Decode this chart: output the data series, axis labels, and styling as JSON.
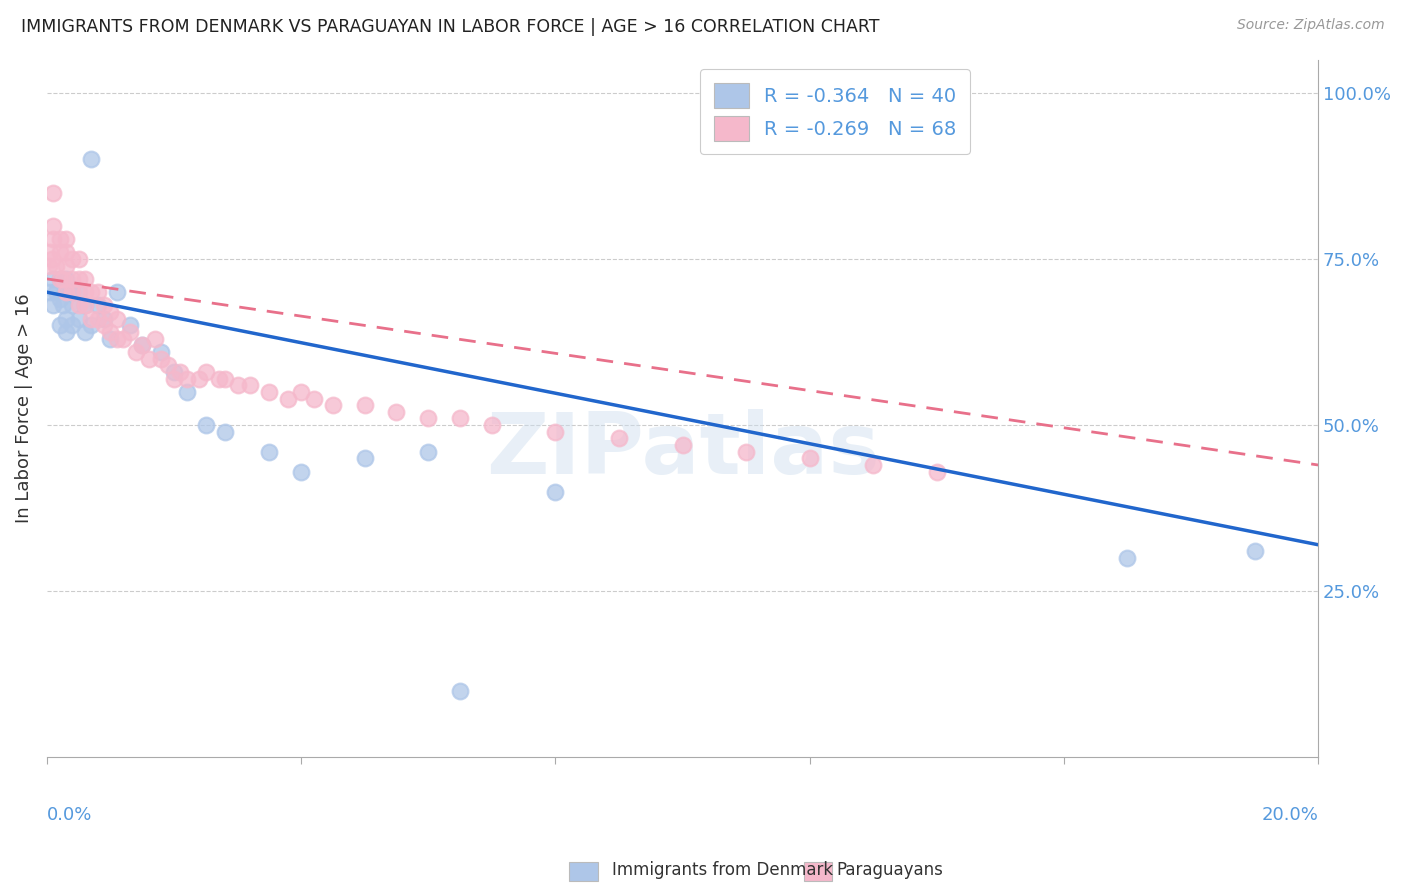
{
  "title": "IMMIGRANTS FROM DENMARK VS PARAGUAYAN IN LABOR FORCE | AGE > 16 CORRELATION CHART",
  "source": "Source: ZipAtlas.com",
  "ylabel": "In Labor Force | Age > 16",
  "legend_r1": "R = -0.364",
  "legend_n1": "N = 40",
  "legend_r2": "R = -0.269",
  "legend_n2": "N = 68",
  "denmark_color": "#aec6e8",
  "denmark_line_color": "#2166cc",
  "paraguayan_color": "#f5b8cb",
  "paraguayan_line_color": "#e8708a",
  "dk_x": [
    0.0005,
    0.001,
    0.001,
    0.0015,
    0.002,
    0.002,
    0.002,
    0.0025,
    0.003,
    0.003,
    0.003,
    0.003,
    0.004,
    0.004,
    0.004,
    0.005,
    0.005,
    0.006,
    0.006,
    0.007,
    0.007,
    0.008,
    0.009,
    0.01,
    0.011,
    0.013,
    0.015,
    0.018,
    0.02,
    0.022,
    0.025,
    0.028,
    0.035,
    0.04,
    0.05,
    0.06,
    0.065,
    0.08,
    0.17,
    0.19
  ],
  "dk_y": [
    0.7,
    0.68,
    0.72,
    0.7,
    0.65,
    0.69,
    0.72,
    0.68,
    0.64,
    0.66,
    0.7,
    0.72,
    0.65,
    0.68,
    0.7,
    0.66,
    0.7,
    0.64,
    0.68,
    0.65,
    0.9,
    0.68,
    0.66,
    0.63,
    0.7,
    0.65,
    0.62,
    0.61,
    0.58,
    0.55,
    0.5,
    0.49,
    0.46,
    0.43,
    0.45,
    0.46,
    0.1,
    0.4,
    0.3,
    0.31
  ],
  "py_x": [
    0.0003,
    0.0005,
    0.0008,
    0.001,
    0.001,
    0.001,
    0.0015,
    0.002,
    0.002,
    0.002,
    0.0025,
    0.003,
    0.003,
    0.003,
    0.003,
    0.004,
    0.004,
    0.004,
    0.005,
    0.005,
    0.005,
    0.006,
    0.006,
    0.006,
    0.007,
    0.007,
    0.008,
    0.008,
    0.009,
    0.009,
    0.01,
    0.01,
    0.011,
    0.011,
    0.012,
    0.013,
    0.014,
    0.015,
    0.016,
    0.017,
    0.018,
    0.019,
    0.02,
    0.021,
    0.022,
    0.024,
    0.025,
    0.027,
    0.028,
    0.03,
    0.032,
    0.035,
    0.038,
    0.04,
    0.042,
    0.045,
    0.05,
    0.055,
    0.06,
    0.065,
    0.07,
    0.08,
    0.09,
    0.1,
    0.11,
    0.12,
    0.13,
    0.14
  ],
  "py_y": [
    0.74,
    0.76,
    0.75,
    0.78,
    0.8,
    0.85,
    0.74,
    0.72,
    0.76,
    0.78,
    0.72,
    0.7,
    0.74,
    0.76,
    0.78,
    0.7,
    0.72,
    0.75,
    0.68,
    0.72,
    0.75,
    0.68,
    0.7,
    0.72,
    0.66,
    0.7,
    0.66,
    0.7,
    0.65,
    0.68,
    0.64,
    0.67,
    0.63,
    0.66,
    0.63,
    0.64,
    0.61,
    0.62,
    0.6,
    0.63,
    0.6,
    0.59,
    0.57,
    0.58,
    0.57,
    0.57,
    0.58,
    0.57,
    0.57,
    0.56,
    0.56,
    0.55,
    0.54,
    0.55,
    0.54,
    0.53,
    0.53,
    0.52,
    0.51,
    0.51,
    0.5,
    0.49,
    0.48,
    0.47,
    0.46,
    0.45,
    0.44,
    0.43
  ],
  "dk_line_x0": 0.0,
  "dk_line_y0": 0.7,
  "dk_line_x1": 0.2,
  "dk_line_y1": 0.32,
  "py_line_x0": 0.0,
  "py_line_y0": 0.72,
  "py_line_x1": 0.2,
  "py_line_y1": 0.44,
  "xlim": [
    0.0,
    0.2
  ],
  "ylim": [
    0.0,
    1.05
  ],
  "right_ytick_vals": [
    0.25,
    0.5,
    0.75,
    1.0
  ],
  "right_ytick_labels": [
    "25.0%",
    "50.0%",
    "75.0%",
    "100.0%"
  ],
  "background_color": "#ffffff",
  "grid_color": "#cccccc",
  "watermark": "ZIPatlas"
}
